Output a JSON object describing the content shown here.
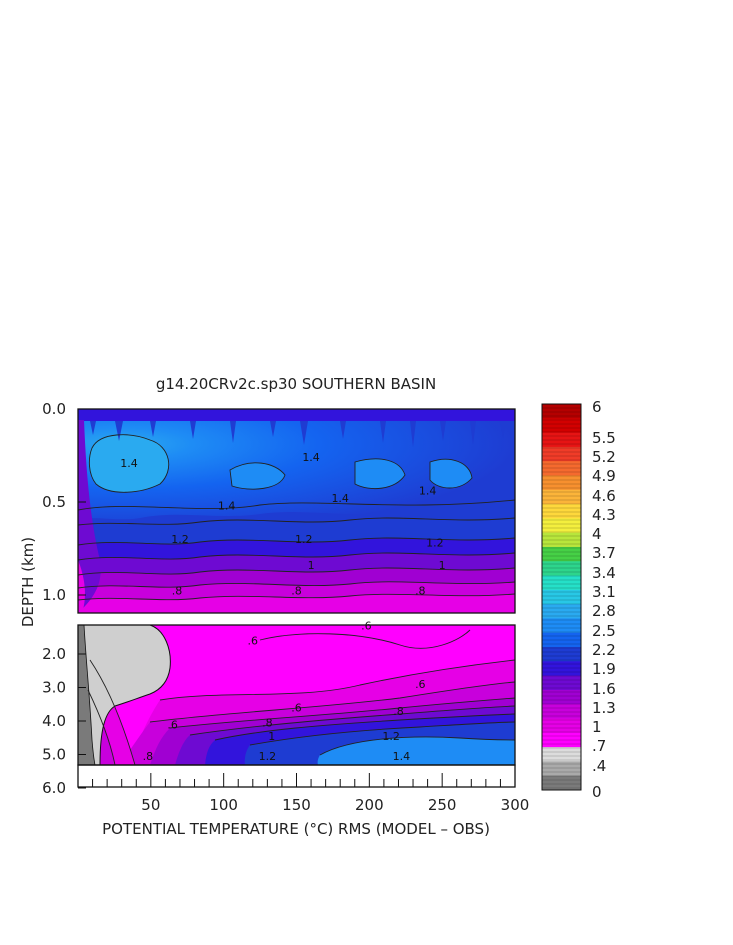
{
  "chart_data": {
    "type": "heatmap",
    "title": "g14.20CRv2c.sp30 SOUTHERN BASIN",
    "xlabel": "POTENTIAL TEMPERATURE (°C) RMS (MODEL – OBS)",
    "ylabel": "DEPTH (km)",
    "xlim": [
      0,
      300
    ],
    "x_ticks": [
      "50",
      "100",
      "150",
      "200",
      "250",
      "300"
    ],
    "upper_panel": {
      "ylim": [
        0.0,
        1.1
      ],
      "y_ticks": [
        "0.0",
        "0.5",
        "1.0"
      ]
    },
    "lower_panel": {
      "ylim": [
        1.1,
        6.0
      ],
      "y_ticks": [
        "2.0",
        "3.0",
        "4.0",
        "5.0",
        "6.0"
      ]
    },
    "colorbar": {
      "labels": [
        "6",
        "5.5",
        "5.2",
        "4.9",
        "4.6",
        "4.3",
        "4",
        "3.7",
        "3.4",
        "3.1",
        "2.8",
        "2.5",
        "2.2",
        "1.9",
        "1.6",
        "1.3",
        "1",
        ".7",
        ".4",
        "0"
      ],
      "colors": [
        "#b40000",
        "#d20000",
        "#e61414",
        "#f03c28",
        "#f56a2e",
        "#f7902f",
        "#fbb43a",
        "#fed83c",
        "#f3ef3e",
        "#b8e63c",
        "#46d046",
        "#2dd58c",
        "#25e0c8",
        "#28c8e6",
        "#2aaaf0",
        "#1e8cf5",
        "#1464f0",
        "#1e3cd2",
        "#3214dc",
        "#6e0ad2",
        "#a000d2",
        "#c800dc",
        "#e600e6",
        "#ff00ff",
        "#dcdcdc",
        "#aaaaaa",
        "#7a7a7a"
      ]
    },
    "contour_labels": [
      {
        "value": "1.4",
        "x": 35,
        "depth": 0.29
      },
      {
        "value": "1.4",
        "x": 160,
        "depth": 0.26
      },
      {
        "value": "1.4",
        "x": 240,
        "depth": 0.44
      },
      {
        "value": "1.4",
        "x": 102,
        "depth": 0.52
      },
      {
        "value": "1.4",
        "x": 180,
        "depth": 0.48
      },
      {
        "value": "1.2",
        "x": 70,
        "depth": 0.7
      },
      {
        "value": "1.2",
        "x": 155,
        "depth": 0.7
      },
      {
        "value": "1.2",
        "x": 245,
        "depth": 0.72
      },
      {
        "value": "1",
        "x": 160,
        "depth": 0.84
      },
      {
        "value": "1",
        "x": 250,
        "depth": 0.84
      },
      {
        "value": ".8",
        "x": 68,
        "depth": 0.98
      },
      {
        "value": ".8",
        "x": 150,
        "depth": 0.98
      },
      {
        "value": ".8",
        "x": 235,
        "depth": 0.98
      },
      {
        "value": ".6",
        "x": 198,
        "depth": 1.15
      },
      {
        "value": ".6",
        "x": 120,
        "depth": 1.6
      },
      {
        "value": ".6",
        "x": 235,
        "depth": 2.9
      },
      {
        "value": ".6",
        "x": 150,
        "depth": 3.6
      },
      {
        "value": ".6",
        "x": 65,
        "depth": 4.1
      },
      {
        "value": ".8",
        "x": 220,
        "depth": 3.7
      },
      {
        "value": ".8",
        "x": 130,
        "depth": 4.05
      },
      {
        "value": ".8",
        "x": 48,
        "depth": 5.05
      },
      {
        "value": "1",
        "x": 133,
        "depth": 4.45
      },
      {
        "value": "1.2",
        "x": 215,
        "depth": 4.45
      },
      {
        "value": "1.2",
        "x": 130,
        "depth": 5.05
      },
      {
        "value": "1.4",
        "x": 222,
        "depth": 5.05
      }
    ]
  }
}
